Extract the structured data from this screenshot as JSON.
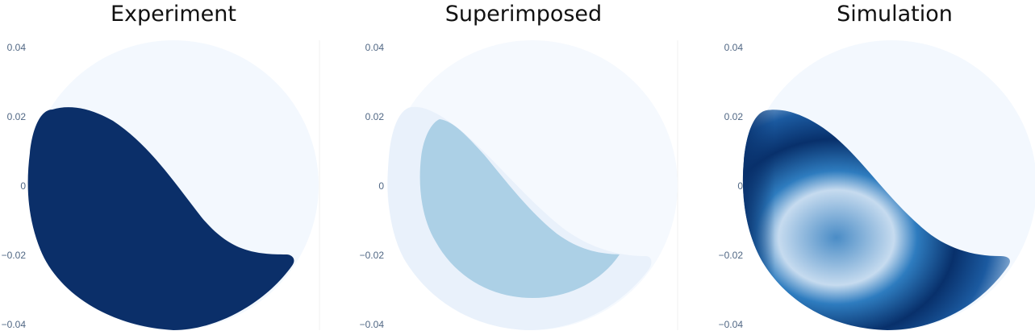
{
  "chart_data": [
    {
      "type": "heatmap",
      "title": "Experiment",
      "y_ticks": [
        "0.04",
        "0.02",
        "0",
        "−0.02",
        "−0.04"
      ],
      "ylim": [
        -0.04,
        0.04
      ],
      "xlim": [
        -0.04,
        0.04
      ],
      "grid": false,
      "legend": "none",
      "colorscale": "Blues",
      "colors": {
        "background_disk": "#f3f8fe",
        "region": "#0b2f69"
      }
    },
    {
      "type": "heatmap",
      "title": "Superimposed",
      "y_ticks": [
        "0.04",
        "0.02",
        "0",
        "−0.02",
        "−0.04"
      ],
      "ylim": [
        -0.04,
        0.04
      ],
      "xlim": [
        -0.04,
        0.04
      ],
      "grid": false,
      "legend": "none",
      "colorscale": "Blues",
      "colors": {
        "background_disk": "#f5f9fe",
        "outer_region": "#e9f1fb",
        "overlap_region": "#acd0e6"
      }
    },
    {
      "type": "heatmap",
      "title": "Simulation",
      "y_ticks": [
        "0.04",
        "0.02",
        "0",
        "−0.02",
        "−0.04"
      ],
      "ylim": [
        -0.04,
        0.04
      ],
      "xlim": [
        -0.04,
        0.04
      ],
      "grid": false,
      "legend": "none",
      "colorscale": "Blues",
      "colors": {
        "background_disk": "#f3f8fe",
        "dark": "#08306b",
        "mid": "#2171b5",
        "light": "#c6dbef"
      }
    }
  ]
}
